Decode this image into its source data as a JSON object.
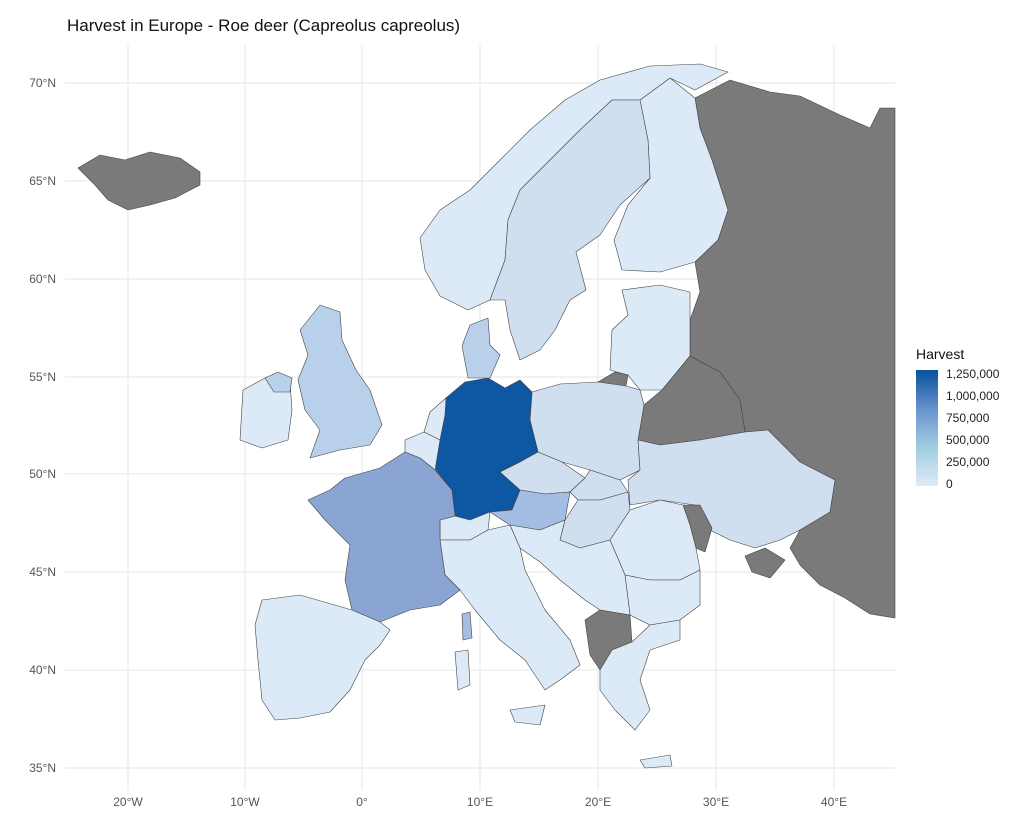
{
  "title": "Harvest in Europe - Roe deer (Capreolus capreolus)",
  "axes": {
    "lat_labels": [
      "70°N",
      "65°N",
      "60°N",
      "55°N",
      "50°N",
      "45°N",
      "40°N",
      "35°N"
    ],
    "lon_labels": [
      "20°W",
      "10°W",
      "0°",
      "10°E",
      "20°E",
      "30°E",
      "40°E"
    ]
  },
  "legend": {
    "title": "Harvest",
    "ticks": [
      "1,250,000",
      "1,000,000",
      "750,000",
      "500,000",
      "250,000",
      "0"
    ]
  },
  "colors": {
    "no_data": "#7a7a7a",
    "lowest": "#dceaf7",
    "low": "#cfdff0",
    "mid_low": "#b9d0ea",
    "mid": "#a3bde3",
    "high": "#8aa5d4",
    "highest": "#0d57a3"
  },
  "regions": [
    {
      "name": "Germany",
      "level": "highest"
    },
    {
      "name": "France",
      "level": "high"
    },
    {
      "name": "Austria",
      "level": "mid"
    },
    {
      "name": "United Kingdom",
      "level": "mid_low"
    },
    {
      "name": "Sweden",
      "level": "low"
    },
    {
      "name": "Poland",
      "level": "low"
    },
    {
      "name": "Ukraine",
      "level": "low"
    },
    {
      "name": "Russia",
      "level": "no_data"
    },
    {
      "name": "Iceland",
      "level": "no_data"
    },
    {
      "name": "Belarus",
      "level": "no_data"
    },
    {
      "name": "Moldova",
      "level": "no_data"
    },
    {
      "name": "Albania",
      "level": "no_data"
    }
  ]
}
